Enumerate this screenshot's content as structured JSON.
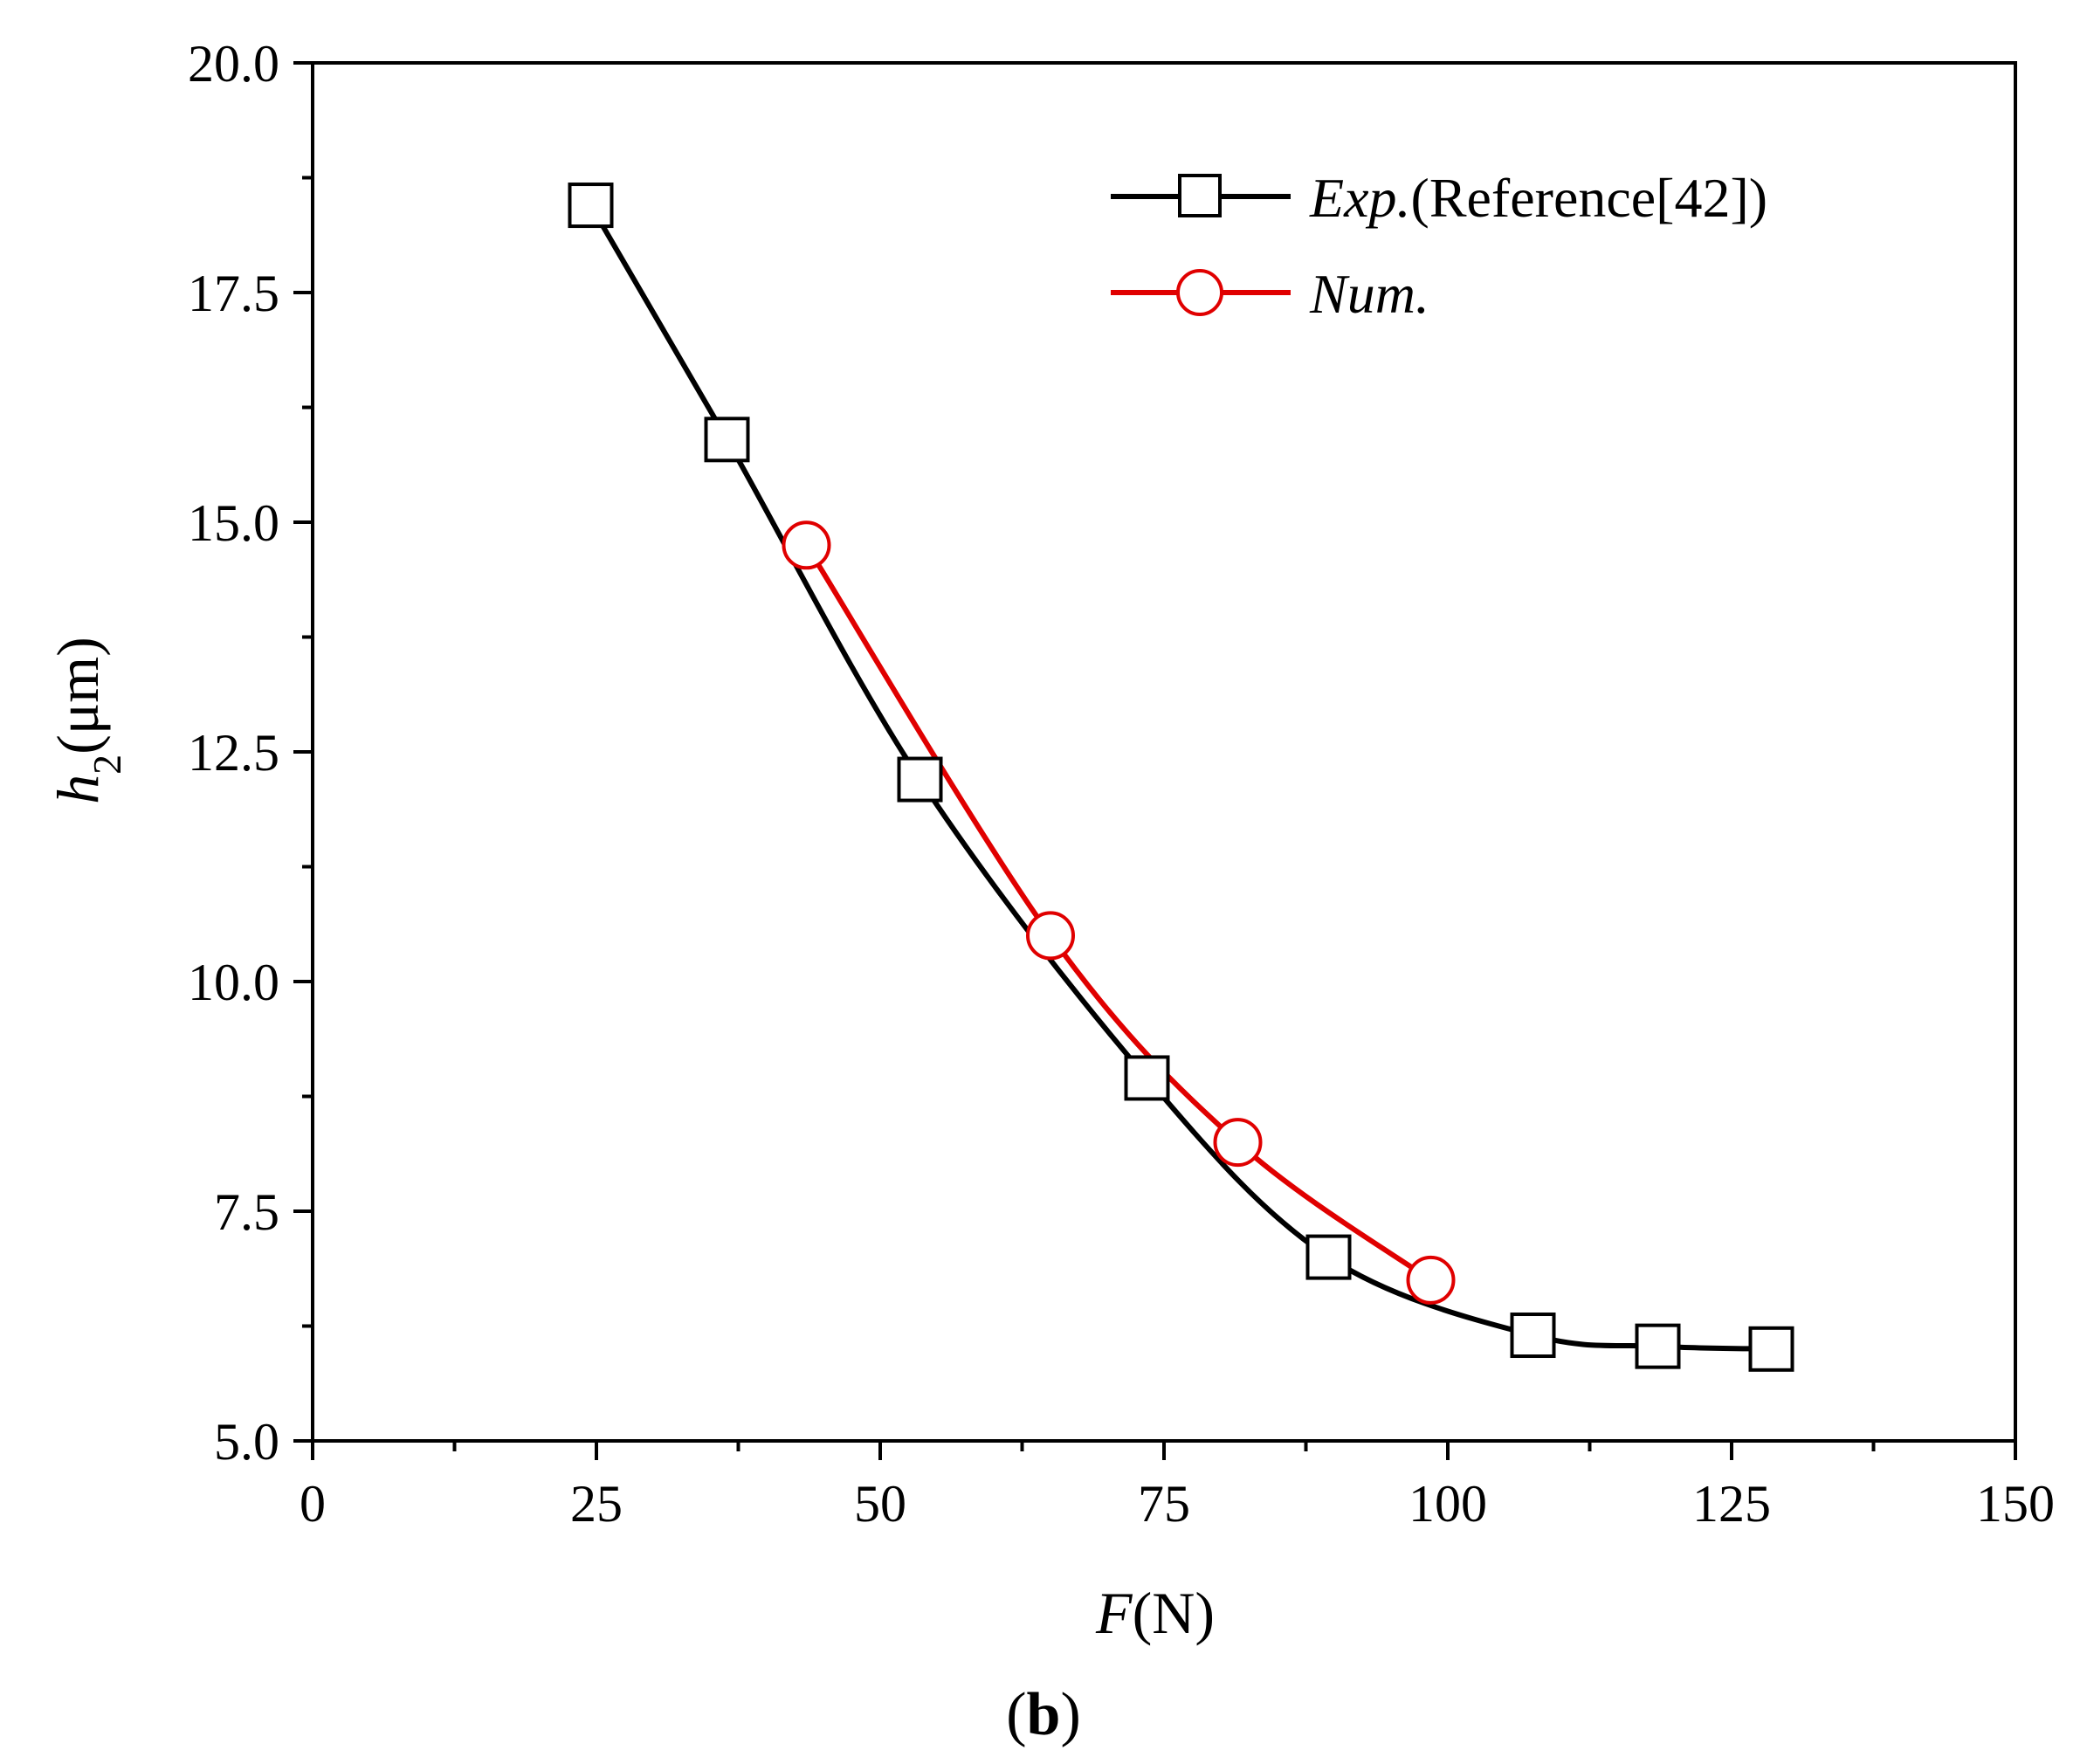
{
  "chart_data": {
    "type": "line",
    "title": "",
    "xlabel": {
      "italic": "F",
      "rest": "(N)"
    },
    "ylabel": {
      "italic": "h",
      "subscript": "2",
      "rest": "(μm)"
    },
    "xlim": [
      0,
      150
    ],
    "ylim": [
      5.0,
      20.0
    ],
    "x_ticks": [
      0,
      25,
      50,
      75,
      100,
      125,
      150
    ],
    "x_tick_labels": [
      "0",
      "25",
      "50",
      "75",
      "100",
      "125",
      "150"
    ],
    "y_ticks": [
      5.0,
      7.5,
      10.0,
      12.5,
      15.0,
      17.5,
      20.0
    ],
    "y_tick_labels": [
      "5.0",
      "7.5",
      "10.0",
      "12.5",
      "15.0",
      "17.5",
      "20.0"
    ],
    "grid": false,
    "legend_position": "top-right",
    "series": [
      {
        "name": "Exp.(Reference[42])",
        "name_italic": "Exp.",
        "name_rest": "(Reference[42])",
        "marker": "square",
        "color": "#000000",
        "x": [
          24.5,
          36.5,
          53.5,
          73.5,
          89.5,
          107.5,
          118.5,
          128.5
        ],
        "y": [
          18.45,
          15.9,
          12.2,
          8.95,
          7.0,
          6.15,
          6.03,
          6.0
        ]
      },
      {
        "name": "Num.",
        "name_italic": "Num.",
        "name_rest": "",
        "marker": "circle",
        "color": "#e00000",
        "x": [
          43.5,
          65.0,
          81.5,
          98.5
        ],
        "y": [
          14.75,
          10.5,
          8.25,
          6.75
        ]
      }
    ]
  },
  "caption": {
    "open": "(",
    "bold": "b",
    "close": ")"
  }
}
